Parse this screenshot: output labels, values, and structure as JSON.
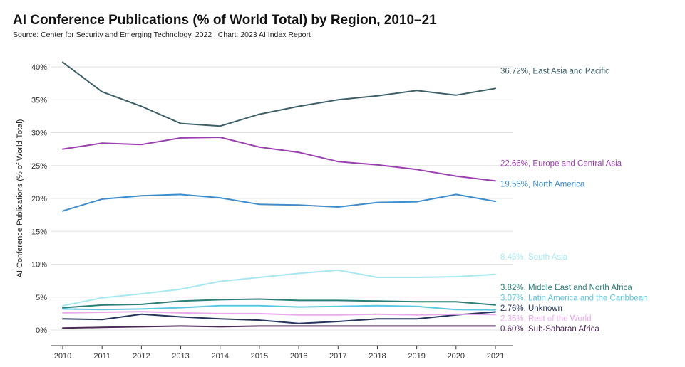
{
  "chart_data": {
    "type": "line",
    "title": "AI Conference Publications (% of World Total) by Region, 2010–21",
    "subtitle": "Source: Center for Security and Emerging Technology, 2022 | Chart: 2023 AI Index Report",
    "xlabel": "",
    "ylabel": "AI Conference Publications (% of World Total)",
    "x": [
      2010,
      2011,
      2012,
      2013,
      2014,
      2015,
      2016,
      2017,
      2018,
      2019,
      2020,
      2021
    ],
    "x_tick_labels": [
      "2010",
      "2011",
      "2012",
      "2013",
      "2014",
      "2015",
      "2016",
      "2017",
      "2018",
      "2019",
      "2020",
      "2021"
    ],
    "ylim": [
      0,
      40
    ],
    "y_ticks": [
      0,
      5,
      10,
      15,
      20,
      25,
      30,
      35,
      40
    ],
    "y_tick_labels": [
      "0%",
      "5%",
      "10%",
      "15%",
      "20%",
      "25%",
      "30%",
      "35%",
      "40%"
    ],
    "grid": "horizontal",
    "legend": "end-of-line labels",
    "series": [
      {
        "name": "East Asia and Pacific",
        "end_label": "36.72%, East Asia and Pacific",
        "color": "#3d5f68",
        "values": [
          40.7,
          36.2,
          34.0,
          31.4,
          31.0,
          32.8,
          34.0,
          35.0,
          35.6,
          36.4,
          35.7,
          36.72
        ]
      },
      {
        "name": "Europe and Central Asia",
        "end_label": "22.66%, Europe and Central Asia",
        "color": "#9b3fb0",
        "values": [
          27.5,
          28.4,
          28.2,
          29.2,
          29.3,
          27.8,
          27.0,
          25.6,
          25.1,
          24.4,
          23.4,
          22.66
        ]
      },
      {
        "name": "North America",
        "end_label": "19.56%, North America",
        "color": "#3d8dcc",
        "values": [
          18.1,
          19.9,
          20.4,
          20.6,
          20.1,
          19.1,
          19.0,
          18.7,
          19.4,
          19.5,
          20.6,
          19.56
        ]
      },
      {
        "name": "South Asia",
        "end_label": "8.45%, South Asia",
        "color": "#a6e8f0",
        "values": [
          3.7,
          4.9,
          5.5,
          6.2,
          7.4,
          8.0,
          8.6,
          9.1,
          8.0,
          8.0,
          8.1,
          8.45
        ]
      },
      {
        "name": "Middle East and North Africa",
        "end_label": "3.82%, Middle East and North Africa",
        "color": "#2b7f78",
        "values": [
          3.4,
          3.8,
          3.9,
          4.4,
          4.6,
          4.7,
          4.5,
          4.5,
          4.4,
          4.3,
          4.3,
          3.82
        ]
      },
      {
        "name": "Latin America and the Caribbean",
        "end_label": "3.07%, Latin America and the Caribbean",
        "color": "#5bc8e0",
        "values": [
          3.2,
          3.1,
          3.2,
          3.4,
          3.7,
          3.7,
          3.5,
          3.6,
          3.7,
          3.6,
          3.1,
          3.07
        ]
      },
      {
        "name": "Unknown",
        "end_label": "2.76%, Unknown",
        "color": "#26355e",
        "values": [
          1.7,
          1.6,
          2.4,
          2.0,
          1.7,
          1.5,
          1.0,
          1.3,
          1.7,
          1.7,
          2.3,
          2.76
        ]
      },
      {
        "name": "Rest of the World",
        "end_label": "2.35%, Rest of the World",
        "color": "#eba9ee",
        "values": [
          2.6,
          2.7,
          2.8,
          2.6,
          2.5,
          2.5,
          2.3,
          2.3,
          2.4,
          2.3,
          2.4,
          2.35
        ]
      },
      {
        "name": "Sub-Saharan Africa",
        "end_label": "0.60%, Sub-Saharan Africa",
        "color": "#4d2a58",
        "values": [
          0.3,
          0.4,
          0.5,
          0.6,
          0.5,
          0.6,
          0.6,
          0.6,
          0.6,
          0.6,
          0.6,
          0.6
        ]
      }
    ]
  }
}
